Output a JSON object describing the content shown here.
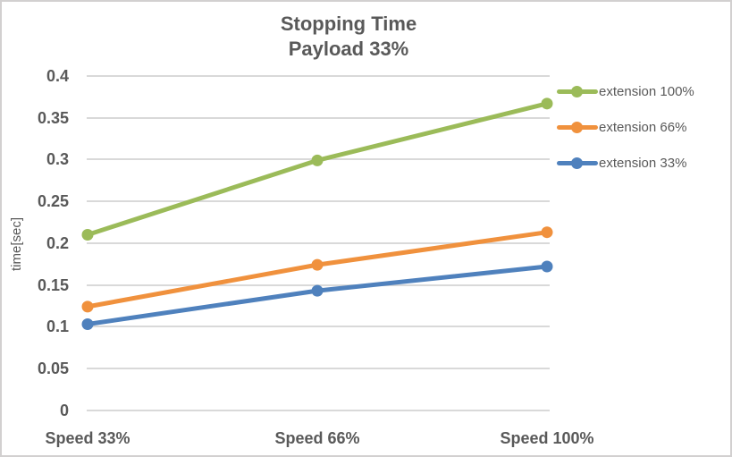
{
  "chart": {
    "title_line1": "Stopping Time",
    "title_line2": "Payload 33%",
    "ylabel": "time[sec]"
  },
  "chart_data": {
    "type": "line",
    "title": "Stopping Time",
    "subtitle": "Payload 33%",
    "xlabel": "",
    "ylabel": "time[sec]",
    "categories": [
      "Speed 33%",
      "Speed 66%",
      "Speed 100%"
    ],
    "series": [
      {
        "name": "extension 100%",
        "color": "#9BBB59",
        "values": [
          0.21,
          0.299,
          0.367
        ]
      },
      {
        "name": "extension 66%",
        "color": "#F0913D",
        "values": [
          0.124,
          0.174,
          0.213
        ]
      },
      {
        "name": "extension 33%",
        "color": "#4F81BD",
        "values": [
          0.103,
          0.143,
          0.172
        ]
      }
    ],
    "ylim": [
      0,
      0.4
    ],
    "ytick_step": 0.05,
    "ytick_labels": [
      "0",
      "0.05",
      "0.1",
      "0.15",
      "0.2",
      "0.25",
      "0.3",
      "0.35",
      "0.4"
    ],
    "grid": "horizontal",
    "legend_position": "right",
    "colors": {
      "text": "#595959",
      "gridline": "#D9D9D9",
      "border": "#D2D0D0",
      "background": "#FFFFFF"
    }
  }
}
